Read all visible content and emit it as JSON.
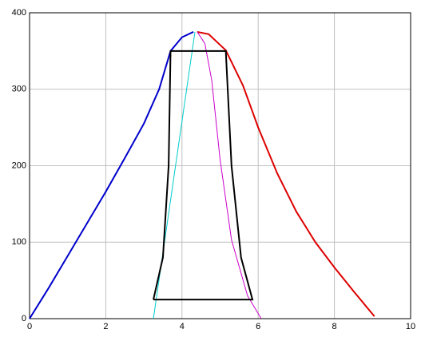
{
  "chart_data": {
    "type": "line",
    "xlim": [
      0,
      10
    ],
    "ylim": [
      0,
      400
    ],
    "xticks": [
      0,
      2,
      4,
      6,
      8,
      10
    ],
    "yticks": [
      0,
      100,
      200,
      300,
      400
    ],
    "grid": true,
    "series": [
      {
        "color": "#0000cc",
        "x": [
          0,
          0.5,
          1,
          1.5,
          2,
          2.5,
          3,
          3.4,
          3.7,
          4.0,
          4.3
        ],
        "values": [
          0,
          40,
          82,
          124,
          166,
          210,
          255,
          300,
          350,
          368,
          375
        ]
      },
      {
        "color": "#dd0000",
        "x": [
          4.4,
          4.7,
          5.15,
          5.6,
          6,
          6.5,
          7,
          7.5,
          8,
          8.5,
          9.05
        ],
        "values": [
          375,
          372,
          351,
          305,
          250,
          190,
          140,
          100,
          67,
          36,
          3
        ]
      },
      {
        "color": "#00cccc",
        "x": [
          3.25,
          4.34
        ],
        "values": [
          0,
          375
        ]
      },
      {
        "color": "#cc00cc",
        "x": [
          4.4,
          4.6,
          4.78,
          5.0,
          5.3,
          5.72,
          6.08
        ],
        "values": [
          375,
          360,
          312,
          208,
          103,
          30,
          0
        ]
      },
      {
        "color": "#000000",
        "x": [
          3.25,
          3.5,
          3.65,
          3.7,
          5.15,
          5.3,
          5.55,
          5.85,
          3.25
        ],
        "values": [
          25,
          80,
          200,
          350,
          350,
          200,
          80,
          25,
          25
        ]
      }
    ]
  }
}
